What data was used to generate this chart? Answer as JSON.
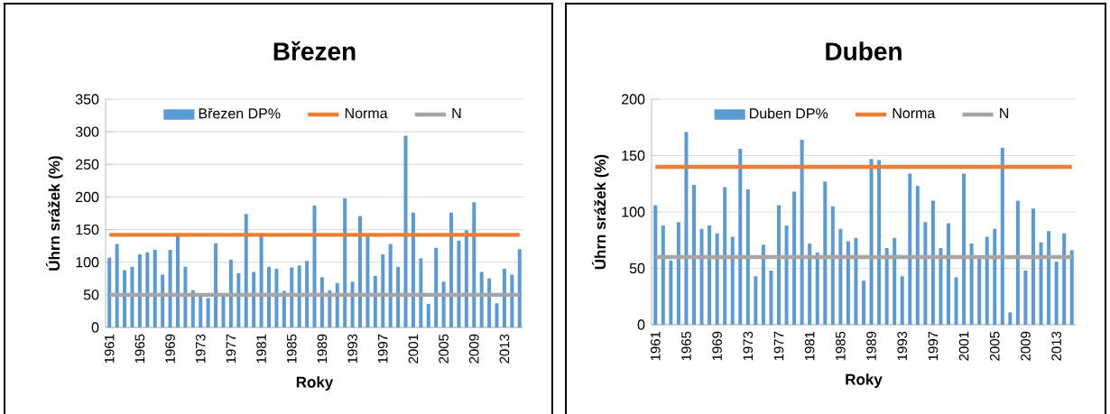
{
  "chart_data": [
    {
      "type": "bar",
      "title": "Březen",
      "xlabel": "Roky",
      "ylabel": "Úhrn srážek (%)",
      "categories": [
        "1961",
        null,
        null,
        null,
        "1965",
        null,
        null,
        null,
        "1969",
        null,
        null,
        null,
        "1973",
        null,
        null,
        null,
        "1977",
        null,
        null,
        null,
        "1981",
        null,
        null,
        null,
        "1985",
        null,
        null,
        null,
        "1989",
        null,
        null,
        null,
        "1993",
        null,
        null,
        null,
        "1997",
        null,
        null,
        null,
        "2001",
        null,
        null,
        null,
        "2005",
        null,
        null,
        null,
        "2009",
        null,
        null,
        null,
        "2013",
        null,
        null
      ],
      "series": [
        {
          "name": "Březen DP%",
          "color": "#5b9bd5",
          "values": [
            107,
            128,
            88,
            93,
            112,
            115,
            119,
            81,
            119,
            140,
            93,
            57,
            47,
            45,
            129,
            50,
            104,
            83,
            174,
            85,
            140,
            93,
            90,
            56,
            92,
            95,
            102,
            187,
            77,
            57,
            68,
            198,
            70,
            171,
            140,
            79,
            112,
            128,
            93,
            294,
            176,
            106,
            36,
            122,
            70,
            176,
            133,
            149,
            192,
            85,
            75,
            37,
            90,
            81,
            120
          ]
        },
        {
          "name": "Norma",
          "type": "line",
          "color": "#ed7d31",
          "values": [
            142,
            142,
            142,
            142,
            142,
            142,
            142,
            142,
            142,
            142,
            142,
            142,
            142,
            142,
            142,
            142,
            142,
            142,
            142,
            142,
            142,
            142,
            142,
            142,
            142,
            142,
            142,
            142,
            142,
            142,
            142,
            142,
            142,
            142,
            142,
            142,
            142,
            142,
            142,
            142,
            142,
            142,
            142,
            142,
            142,
            142,
            142,
            142,
            142,
            142,
            142,
            142,
            142,
            142,
            142
          ]
        },
        {
          "name": "N",
          "type": "line",
          "color": "#a5a5a5",
          "values": [
            50,
            50,
            50,
            50,
            50,
            50,
            50,
            50,
            50,
            50,
            50,
            50,
            50,
            50,
            50,
            50,
            50,
            50,
            50,
            50,
            50,
            50,
            50,
            50,
            50,
            50,
            50,
            50,
            50,
            50,
            50,
            50,
            50,
            50,
            50,
            50,
            50,
            50,
            50,
            50,
            50,
            50,
            50,
            50,
            50,
            50,
            50,
            50,
            50,
            50,
            50,
            50,
            50,
            50,
            50
          ]
        }
      ],
      "ylim": [
        0,
        350
      ],
      "yticks": [
        0,
        50,
        100,
        150,
        200,
        250,
        300,
        350
      ],
      "grid": "y",
      "legend": "top",
      "marker": "none"
    },
    {
      "type": "bar",
      "title": "Duben",
      "xlabel": "Roky",
      "ylabel": "Úhrn srážek (%)",
      "categories": [
        "1961",
        null,
        null,
        null,
        "1965",
        null,
        null,
        null,
        "1969",
        null,
        null,
        null,
        "1973",
        null,
        null,
        null,
        "1977",
        null,
        null,
        null,
        "1981",
        null,
        null,
        null,
        "1985",
        null,
        null,
        null,
        "1989",
        null,
        null,
        null,
        "1993",
        null,
        null,
        null,
        "1997",
        null,
        null,
        null,
        "2001",
        null,
        null,
        null,
        "2005",
        null,
        null,
        null,
        "2009",
        null,
        null,
        null,
        "2013",
        null,
        null
      ],
      "series": [
        {
          "name": "Duben DP%",
          "color": "#5b9bd5",
          "values": [
            106,
            88,
            57,
            91,
            171,
            124,
            85,
            88,
            81,
            122,
            78,
            156,
            120,
            43,
            71,
            48,
            106,
            88,
            118,
            164,
            72,
            64,
            127,
            105,
            85,
            74,
            77,
            39,
            147,
            146,
            68,
            77,
            43,
            134,
            123,
            91,
            110,
            68,
            90,
            42,
            134,
            72,
            59,
            78,
            85,
            157,
            11,
            110,
            48,
            103,
            73,
            83,
            56,
            81,
            66
          ]
        },
        {
          "name": "Norma",
          "type": "line",
          "color": "#ed7d31",
          "values": [
            140,
            140,
            140,
            140,
            140,
            140,
            140,
            140,
            140,
            140,
            140,
            140,
            140,
            140,
            140,
            140,
            140,
            140,
            140,
            140,
            140,
            140,
            140,
            140,
            140,
            140,
            140,
            140,
            140,
            140,
            140,
            140,
            140,
            140,
            140,
            140,
            140,
            140,
            140,
            140,
            140,
            140,
            140,
            140,
            140,
            140,
            140,
            140,
            140,
            140,
            140,
            140,
            140,
            140,
            140
          ]
        },
        {
          "name": "N",
          "type": "line",
          "color": "#a5a5a5",
          "values": [
            60,
            60,
            60,
            60,
            60,
            60,
            60,
            60,
            60,
            60,
            60,
            60,
            60,
            60,
            60,
            60,
            60,
            60,
            60,
            60,
            60,
            60,
            60,
            60,
            60,
            60,
            60,
            60,
            60,
            60,
            60,
            60,
            60,
            60,
            60,
            60,
            60,
            60,
            60,
            60,
            60,
            60,
            60,
            60,
            60,
            60,
            60,
            60,
            60,
            60,
            60,
            60,
            60,
            60,
            60
          ]
        }
      ],
      "ylim": [
        0,
        200
      ],
      "yticks": [
        0,
        50,
        100,
        150,
        200
      ],
      "grid": "y",
      "legend": "top",
      "marker": "none"
    }
  ]
}
